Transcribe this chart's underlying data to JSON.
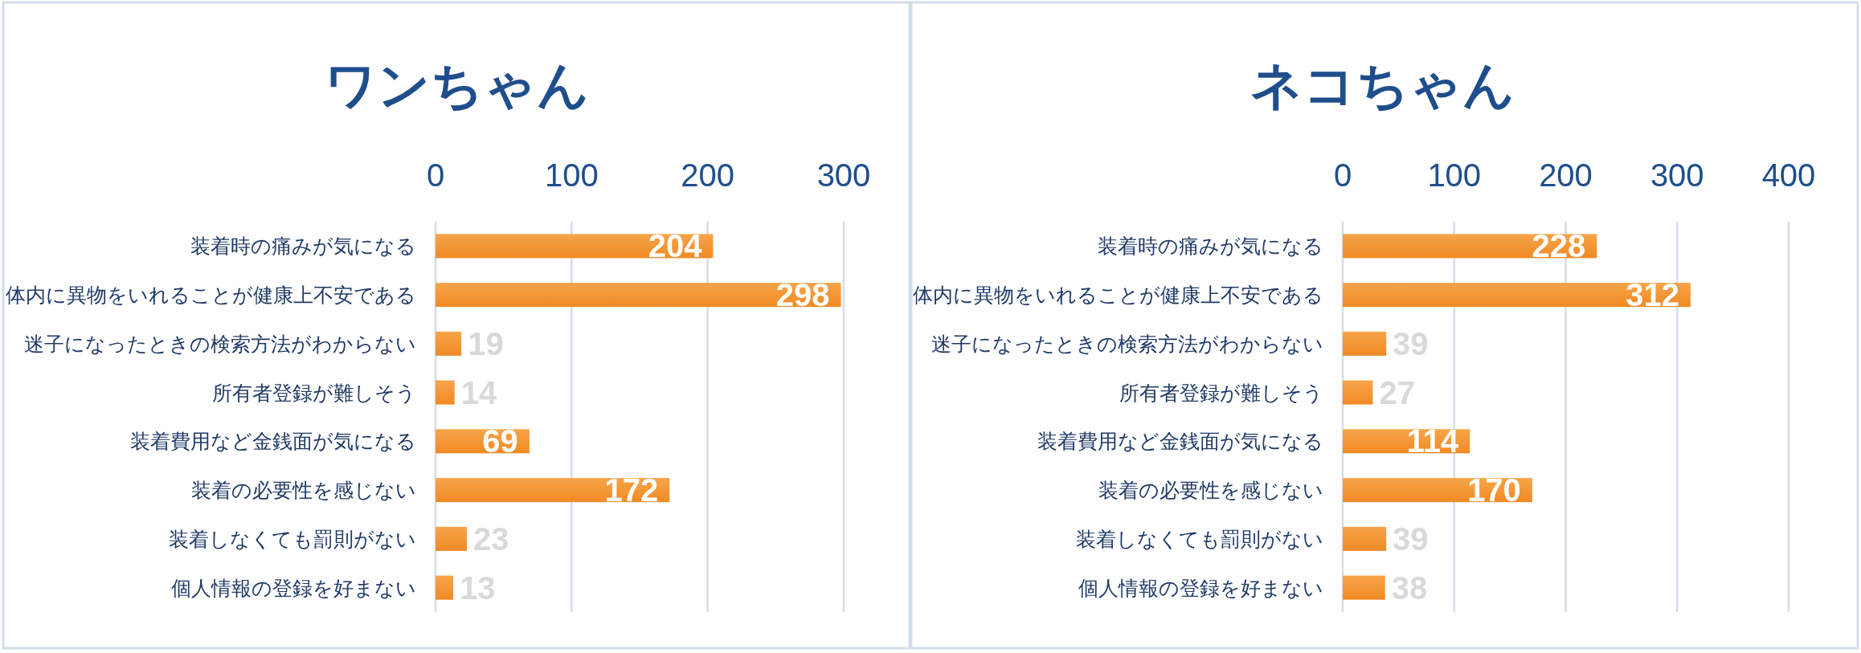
{
  "chart_data": [
    {
      "type": "bar",
      "orientation": "horizontal",
      "title": "ワンちゃん",
      "categories": [
        "装着時の痛みが気になる",
        "体内に異物をいれることが健康上不安である",
        "迷子になったときの検索方法がわからない",
        "所有者登録が難しそう",
        "装着費用など金銭面が気になる",
        "装着の必要性を感じない",
        "装着しなくても罰則がない",
        "個人情報の登録を好まない"
      ],
      "values": [
        204,
        298,
        19,
        14,
        69,
        172,
        23,
        13
      ],
      "color": "#f08a24",
      "xlim": [
        0,
        300
      ],
      "xticks": [
        0,
        100,
        200,
        300
      ],
      "grid": "x",
      "data_labels": true
    },
    {
      "type": "bar",
      "orientation": "horizontal",
      "title": "ネコちゃん",
      "categories": [
        "装着時の痛みが気になる",
        "体内に異物をいれることが健康上不安である",
        "迷子になったときの検索方法がわからない",
        "所有者登録が難しそう",
        "装着費用など金銭面が気になる",
        "装着の必要性を感じない",
        "装着しなくても罰則がない",
        "個人情報の登録を好まない"
      ],
      "values": [
        228,
        312,
        39,
        27,
        114,
        170,
        39,
        38
      ],
      "color": "#f08a24",
      "xlim": [
        0,
        400
      ],
      "xticks": [
        0,
        100,
        200,
        300,
        400
      ],
      "grid": "x",
      "data_labels": true
    }
  ]
}
